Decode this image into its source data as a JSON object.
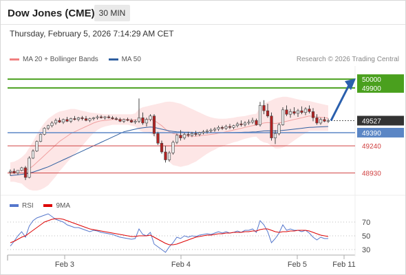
{
  "header": {
    "symbol": "Dow Jones (CME)",
    "timeframe": "30 MIN"
  },
  "timestamp": "Thursday, February 5, 2026 7:14:29 AM CET",
  "legend": {
    "items": [
      {
        "label": "MA 20 + Bollinger Bands",
        "color": "#f08080"
      },
      {
        "label": "MA 50",
        "color": "#2f5fa0"
      }
    ],
    "copyright": "Research © 2026 Trading Central"
  },
  "rsi_legend": {
    "items": [
      {
        "label": "RSI",
        "color": "#5577cc"
      },
      {
        "label": "9MA",
        "color": "#dd0000"
      }
    ]
  },
  "colors": {
    "up_candle": "#e8e8e8",
    "down_candle": "#b22222",
    "target_green": "#4aa01e",
    "pivot_blue": "#5b86c5",
    "support_red": "#d04040",
    "last_price_bg": "#333333",
    "arrow_blue": "#2a5fad",
    "band_fill": "#fde3e3",
    "ma20": "#f0a0a0",
    "ma50": "#2f5fa0"
  },
  "chart_data": [
    {
      "type": "candlestick",
      "title": "Dow Jones (CME) 30 MIN",
      "xlabel": "",
      "ylabel": "",
      "ylim": [
        48700,
        50150
      ],
      "x_tick_labels": [
        "Feb 3",
        "Feb 4",
        "Feb 5",
        "Feb 11"
      ],
      "price_levels": [
        {
          "value": 50000,
          "label": "50000",
          "kind": "target"
        },
        {
          "value": 49900,
          "label": "49900",
          "kind": "target"
        },
        {
          "value": 49527,
          "label": "49527",
          "kind": "last"
        },
        {
          "value": 49390,
          "label": "49390",
          "kind": "pivot"
        },
        {
          "value": 49240,
          "label": "49240",
          "kind": "support"
        },
        {
          "value": 48930,
          "label": "48930",
          "kind": "support"
        }
      ],
      "ohlc": [
        [
          48940,
          48970,
          48900,
          48950
        ],
        [
          48950,
          48980,
          48920,
          48930
        ],
        [
          48930,
          48960,
          48910,
          48960
        ],
        [
          48960,
          49000,
          48950,
          48990
        ],
        [
          48990,
          49010,
          48850,
          48880
        ],
        [
          48880,
          49120,
          48870,
          49100
        ],
        [
          49100,
          49200,
          49090,
          49180
        ],
        [
          49180,
          49300,
          49170,
          49290
        ],
        [
          49290,
          49380,
          49280,
          49370
        ],
        [
          49370,
          49450,
          49360,
          49440
        ],
        [
          49440,
          49480,
          49420,
          49470
        ],
        [
          49470,
          49520,
          49450,
          49500
        ],
        [
          49500,
          49550,
          49480,
          49530
        ],
        [
          49530,
          49560,
          49500,
          49510
        ],
        [
          49510,
          49550,
          49490,
          49540
        ],
        [
          49540,
          49570,
          49510,
          49520
        ],
        [
          49520,
          49560,
          49500,
          49550
        ],
        [
          49550,
          49580,
          49530,
          49540
        ],
        [
          49540,
          49570,
          49520,
          49560
        ],
        [
          49560,
          49580,
          49530,
          49550
        ],
        [
          49550,
          49580,
          49520,
          49530
        ],
        [
          49530,
          49560,
          49510,
          49550
        ],
        [
          49550,
          49570,
          49530,
          49560
        ],
        [
          49560,
          49590,
          49540,
          49570
        ],
        [
          49570,
          49590,
          49550,
          49560
        ],
        [
          49560,
          49580,
          49540,
          49570
        ],
        [
          49570,
          49590,
          49550,
          49560
        ],
        [
          49560,
          49580,
          49540,
          49550
        ],
        [
          49550,
          49570,
          49530,
          49540
        ],
        [
          49540,
          49560,
          49510,
          49520
        ],
        [
          49520,
          49550,
          49500,
          49540
        ],
        [
          49540,
          49560,
          49520,
          49530
        ],
        [
          49530,
          49550,
          49500,
          49510
        ],
        [
          49510,
          49540,
          49490,
          49520
        ],
        [
          49520,
          49780,
          49500,
          49560
        ],
        [
          49560,
          49620,
          49480,
          49500
        ],
        [
          49500,
          49560,
          49460,
          49540
        ],
        [
          49540,
          49600,
          49520,
          49580
        ],
        [
          49580,
          49600,
          49350,
          49380
        ],
        [
          49380,
          49400,
          49250,
          49270
        ],
        [
          49270,
          49300,
          49150,
          49170
        ],
        [
          49170,
          49240,
          49050,
          49080
        ],
        [
          49080,
          49180,
          49060,
          49160
        ],
        [
          49160,
          49300,
          49140,
          49280
        ],
        [
          49280,
          49380,
          49260,
          49360
        ],
        [
          49360,
          49420,
          49300,
          49330
        ],
        [
          49330,
          49390,
          49310,
          49370
        ],
        [
          49370,
          49400,
          49340,
          49360
        ],
        [
          49360,
          49400,
          49340,
          49380
        ],
        [
          49380,
          49410,
          49350,
          49370
        ],
        [
          49370,
          49400,
          49350,
          49390
        ],
        [
          49390,
          49420,
          49370,
          49400
        ],
        [
          49400,
          49430,
          49380,
          49410
        ],
        [
          49410,
          49440,
          49390,
          49420
        ],
        [
          49420,
          49450,
          49400,
          49430
        ],
        [
          49430,
          49470,
          49410,
          49450
        ],
        [
          49450,
          49470,
          49420,
          49440
        ],
        [
          49440,
          49480,
          49420,
          49460
        ],
        [
          49460,
          49490,
          49430,
          49450
        ],
        [
          49450,
          49480,
          49430,
          49470
        ],
        [
          49470,
          49510,
          49450,
          49490
        ],
        [
          49490,
          49530,
          49460,
          49480
        ],
        [
          49480,
          49520,
          49460,
          49500
        ],
        [
          49500,
          49540,
          49480,
          49510
        ],
        [
          49510,
          49560,
          49490,
          49530
        ],
        [
          49530,
          49550,
          49470,
          49480
        ],
        [
          49480,
          49740,
          49460,
          49700
        ],
        [
          49700,
          49760,
          49600,
          49640
        ],
        [
          49640,
          49720,
          49560,
          49580
        ],
        [
          49580,
          49620,
          49300,
          49330
        ],
        [
          49330,
          49420,
          49260,
          49380
        ],
        [
          49380,
          49500,
          49360,
          49480
        ],
        [
          49480,
          49680,
          49470,
          49650
        ],
        [
          49650,
          49700,
          49580,
          49600
        ],
        [
          49600,
          49660,
          49560,
          49630
        ],
        [
          49630,
          49680,
          49590,
          49610
        ],
        [
          49610,
          49660,
          49570,
          49640
        ],
        [
          49640,
          49690,
          49600,
          49620
        ],
        [
          49620,
          49680,
          49590,
          49660
        ],
        [
          49660,
          49700,
          49610,
          49630
        ],
        [
          49630,
          49670,
          49520,
          49560
        ],
        [
          49560,
          49600,
          49480,
          49500
        ],
        [
          49500,
          49560,
          49480,
          49540
        ],
        [
          49540,
          49570,
          49510,
          49520
        ],
        [
          49520,
          49550,
          49500,
          49527
        ]
      ],
      "ma20": [
        48940,
        48945,
        48950,
        48960,
        48960,
        48980,
        49010,
        49050,
        49090,
        49130,
        49170,
        49210,
        49250,
        49290,
        49320,
        49350,
        49380,
        49400,
        49420,
        49440,
        49460,
        49480,
        49500,
        49515,
        49525,
        49530,
        49535,
        49540,
        49540,
        49540,
        49540,
        49540,
        49535,
        49535,
        49540,
        49540,
        49540,
        49540,
        49530,
        49500,
        49470,
        49430,
        49400,
        49380,
        49370,
        49360,
        49355,
        49350,
        49350,
        49350,
        49355,
        49360,
        49365,
        49370,
        49375,
        49385,
        49390,
        49400,
        49410,
        49420,
        49430,
        49440,
        49450,
        49460,
        49470,
        49475,
        49490,
        49500,
        49505,
        49500,
        49495,
        49500,
        49510,
        49520,
        49530,
        49540,
        49550,
        49560,
        49570,
        49580,
        49575,
        49570,
        49565,
        49560,
        49555
      ],
      "ma50": [
        48900,
        48905,
        48910,
        48915,
        48920,
        48930,
        48940,
        48955,
        48970,
        48985,
        49000,
        49020,
        49040,
        49060,
        49080,
        49100,
        49120,
        49140,
        49160,
        49180,
        49200,
        49220,
        49240,
        49260,
        49280,
        49300,
        49320,
        49340,
        49360,
        49380,
        49400,
        49410,
        49420,
        49430,
        49440,
        49445,
        49450,
        49455,
        49450,
        49440,
        49430,
        49420,
        49410,
        49405,
        49400,
        49398,
        49396,
        49395,
        49394,
        49393,
        49392,
        49391,
        49390,
        49390,
        49390,
        49390,
        49390,
        49390,
        49391,
        49392,
        49393,
        49394,
        49395,
        49396,
        49398,
        49400,
        49405,
        49410,
        49412,
        49410,
        49410,
        49412,
        49416,
        49420,
        49425,
        49430,
        49435,
        49440,
        49445,
        49450,
        49452,
        49454,
        49456,
        49458,
        49460
      ],
      "bb_upper": [
        49050,
        49060,
        49080,
        49110,
        49150,
        49220,
        49290,
        49370,
        49440,
        49500,
        49550,
        49580,
        49610,
        49630,
        49640,
        49650,
        49660,
        49660,
        49650,
        49640,
        49630,
        49620,
        49615,
        49610,
        49605,
        49600,
        49600,
        49600,
        49600,
        49600,
        49600,
        49600,
        49600,
        49610,
        49660,
        49680,
        49690,
        49700,
        49710,
        49720,
        49730,
        49740,
        49745,
        49740,
        49730,
        49720,
        49700,
        49680,
        49660,
        49640,
        49620,
        49600,
        49580,
        49565,
        49555,
        49550,
        49548,
        49550,
        49555,
        49560,
        49570,
        49575,
        49580,
        49590,
        49600,
        49605,
        49680,
        49720,
        49740,
        49760,
        49780,
        49790,
        49800,
        49800,
        49790,
        49780,
        49770,
        49760,
        49755,
        49750,
        49740,
        49730,
        49720,
        49710,
        49700
      ],
      "bb_lower": [
        48830,
        48830,
        48820,
        48810,
        48770,
        48740,
        48730,
        48730,
        48740,
        48760,
        48790,
        48840,
        48890,
        48950,
        49000,
        49050,
        49100,
        49140,
        49190,
        49240,
        49290,
        49340,
        49385,
        49420,
        49445,
        49460,
        49470,
        49480,
        49480,
        49480,
        49480,
        49480,
        49470,
        49460,
        49420,
        49400,
        49390,
        49380,
        49350,
        49280,
        49210,
        49120,
        49055,
        49020,
        49010,
        49000,
        49010,
        49020,
        49040,
        49060,
        49090,
        49120,
        49150,
        49175,
        49195,
        49220,
        49232,
        49250,
        49265,
        49280,
        49290,
        49305,
        49320,
        49330,
        49340,
        49345,
        49300,
        49280,
        49270,
        49240,
        49210,
        49210,
        49220,
        49240,
        49270,
        49300,
        49330,
        49360,
        49385,
        49410,
        49410,
        49410,
        49410,
        49410,
        49410
      ]
    },
    {
      "type": "line",
      "title": "RSI",
      "ylim": [
        20,
        80
      ],
      "y_ticks": [
        70,
        50,
        30
      ],
      "series": [
        {
          "name": "RSI",
          "values": [
            35,
            42,
            50,
            56,
            48,
            64,
            72,
            76,
            78,
            80,
            82,
            78,
            74,
            72,
            70,
            66,
            64,
            62,
            62,
            60,
            58,
            56,
            58,
            57,
            55,
            54,
            53,
            52,
            50,
            48,
            47,
            46,
            45,
            46,
            60,
            52,
            50,
            55,
            38,
            34,
            30,
            26,
            34,
            40,
            48,
            46,
            50,
            48,
            50,
            49,
            51,
            52,
            53,
            52,
            54,
            56,
            54,
            56,
            54,
            55,
            57,
            55,
            58,
            58,
            60,
            55,
            72,
            66,
            56,
            40,
            46,
            54,
            66,
            58,
            60,
            58,
            58,
            56,
            58,
            54,
            48,
            44,
            48,
            46,
            46
          ]
        },
        {
          "name": "9MA",
          "values": [
            40,
            42,
            45,
            48,
            50,
            54,
            58,
            62,
            66,
            70,
            72,
            74,
            75,
            75,
            74,
            72,
            70,
            68,
            66,
            64,
            62,
            60,
            59,
            58,
            57,
            56,
            55,
            54,
            53,
            52,
            51,
            50,
            49,
            49,
            50,
            50,
            50,
            51,
            48,
            45,
            42,
            39,
            37,
            37,
            38,
            40,
            42,
            44,
            46,
            48,
            49,
            50,
            51,
            51,
            52,
            53,
            53,
            54,
            54,
            55,
            55,
            55,
            56,
            56,
            57,
            57,
            59,
            60,
            60,
            58,
            56,
            55,
            56,
            56,
            57,
            57,
            58,
            58,
            58,
            57,
            55,
            53,
            51,
            50,
            49
          ]
        }
      ]
    }
  ]
}
